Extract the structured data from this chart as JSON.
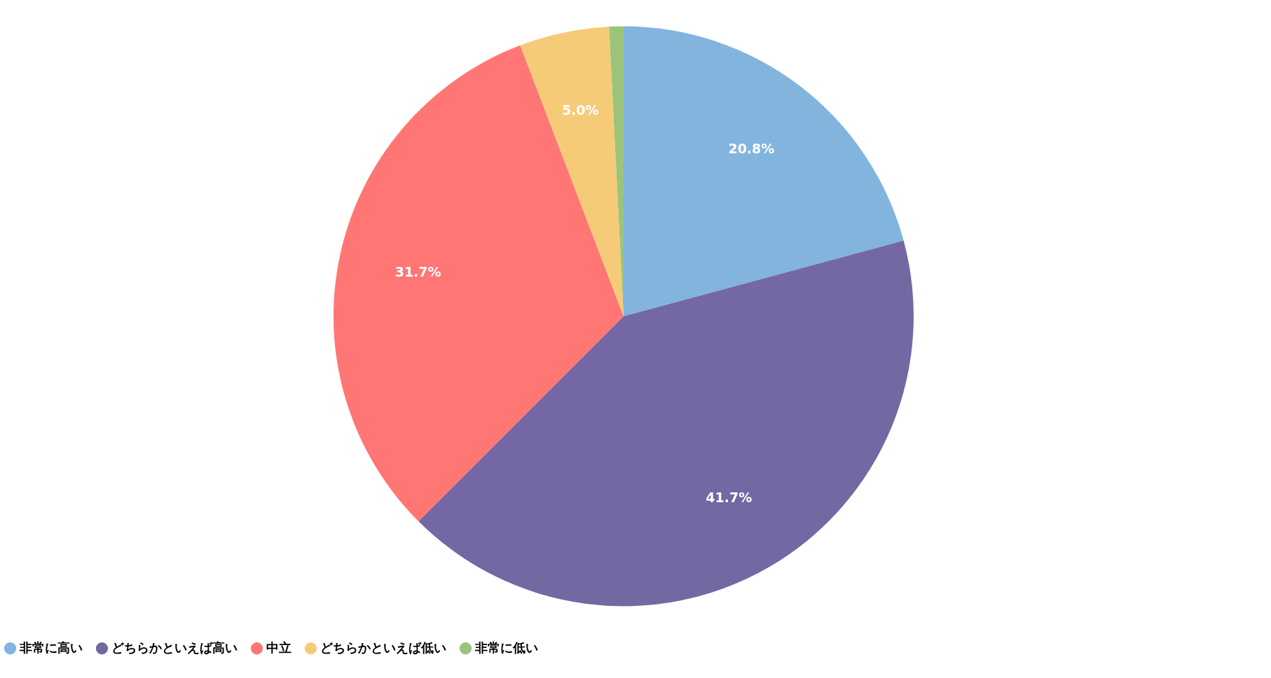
{
  "chart_data": {
    "type": "pie",
    "categories": [
      "非常に高い",
      "どちらかといえば高い",
      "中立",
      "どちらかといえば低い",
      "非常に低い"
    ],
    "values": [
      20.8,
      41.7,
      31.7,
      5.0,
      0.8
    ],
    "colors": [
      "#82b4de",
      "#7468a3",
      "#ff7675",
      "#f6cb77",
      "#9bc47a"
    ],
    "value_labels": [
      "20.8%",
      "41.7%",
      "31.7%",
      "5.0%",
      null
    ],
    "legend": "bottom"
  }
}
